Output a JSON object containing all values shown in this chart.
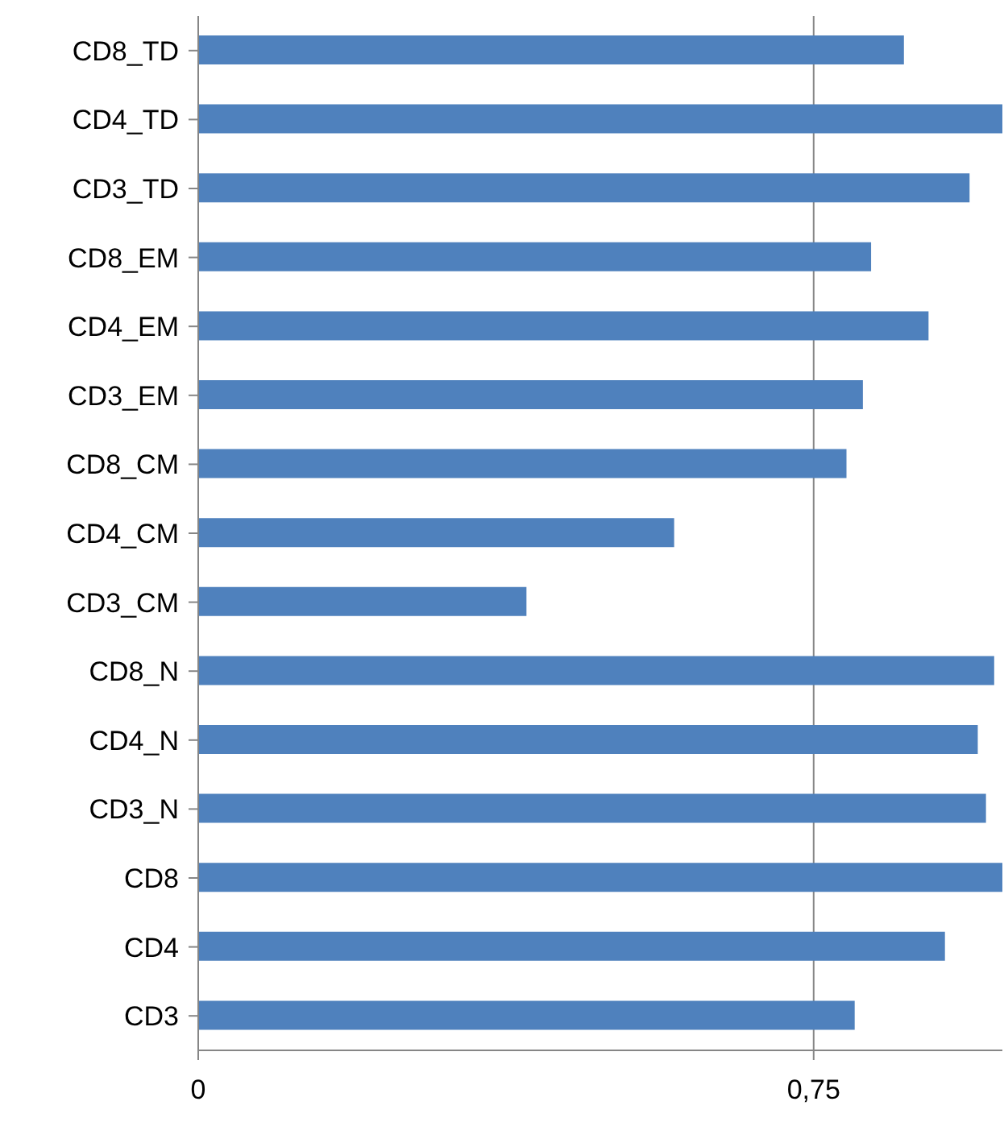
{
  "chart_data": {
    "type": "bar",
    "orientation": "horizontal",
    "categories": [
      "CD8_TD",
      "CD4_TD",
      "CD3_TD",
      "CD8_EM",
      "CD4_EM",
      "CD3_EM",
      "CD8_CM",
      "CD4_CM",
      "CD3_CM",
      "CD8_N",
      "CD4_N",
      "CD3_N",
      "CD8",
      "CD4",
      "CD3"
    ],
    "values": [
      0.86,
      0.98,
      0.94,
      0.82,
      0.89,
      0.81,
      0.79,
      0.58,
      0.4,
      0.97,
      0.95,
      0.96,
      0.98,
      0.91,
      0.8
    ],
    "color": "#4f81bd",
    "xlim": [
      0,
      0.98
    ],
    "xticks": [
      0,
      {
        "value": 0.75,
        "label": "0,75"
      }
    ],
    "grid": "x",
    "legend": false
  }
}
